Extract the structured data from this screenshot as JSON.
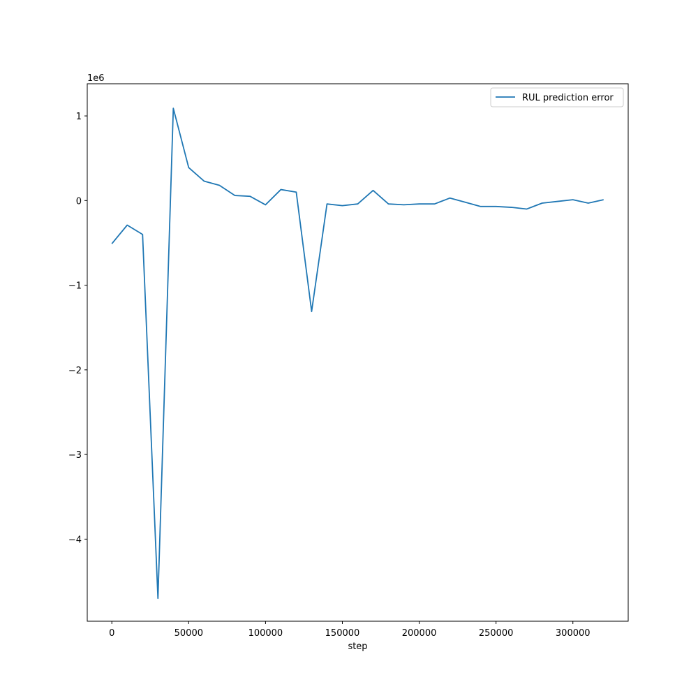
{
  "chart_data": {
    "type": "line",
    "title": "",
    "xlabel": "step",
    "ylabel": "",
    "y_offset_label": "1e6",
    "y_scale": 1000000,
    "xlim": [
      -16000,
      336000
    ],
    "ylim": [
      -4.97,
      1.38
    ],
    "x_ticks": [
      0,
      50000,
      100000,
      150000,
      200000,
      250000,
      300000
    ],
    "x_tick_labels": [
      "0",
      "50000",
      "100000",
      "150000",
      "200000",
      "250000",
      "300000"
    ],
    "y_ticks": [
      1,
      0,
      -1,
      -2,
      -3,
      -4
    ],
    "y_tick_labels": [
      "1",
      "0",
      "−1",
      "−2",
      "−3",
      "−4"
    ],
    "grid": false,
    "legend_position": "upper-right",
    "series": [
      {
        "name": "RUL prediction error",
        "color": "#1f77b4",
        "x": [
          0,
          10000,
          20000,
          30000,
          40000,
          50000,
          60000,
          70000,
          80000,
          90000,
          100000,
          110000,
          120000,
          130000,
          140000,
          150000,
          160000,
          170000,
          180000,
          190000,
          200000,
          210000,
          220000,
          230000,
          240000,
          250000,
          260000,
          270000,
          280000,
          290000,
          300000,
          310000,
          320000
        ],
        "values": [
          -0.51,
          -0.29,
          -0.4,
          -4.7,
          1.09,
          0.39,
          0.23,
          0.18,
          0.06,
          0.05,
          -0.05,
          0.13,
          0.1,
          -1.31,
          -0.04,
          -0.06,
          -0.04,
          0.12,
          -0.04,
          -0.05,
          -0.04,
          -0.04,
          0.03,
          -0.02,
          -0.07,
          -0.07,
          -0.08,
          -0.1,
          -0.03,
          -0.01,
          0.01,
          -0.03,
          0.01
        ]
      }
    ]
  }
}
